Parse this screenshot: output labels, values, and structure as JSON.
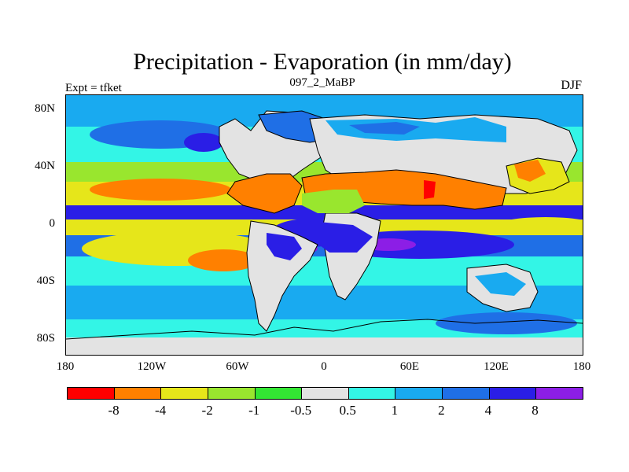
{
  "header": {
    "title": "Precipitation - Evaporation (in mm/day)",
    "subtitle_center": "097_2_MaBP",
    "subtitle_left": "Expt = tfket",
    "subtitle_right": "DJF"
  },
  "map": {
    "projection": "cylindrical equidistant",
    "lon_range": [
      -180,
      180
    ],
    "lat_range": [
      -90,
      90
    ],
    "y_axis_labels": [
      "80N",
      "40N",
      "0",
      "40S",
      "80S"
    ],
    "x_axis_labels": [
      "180",
      "120W",
      "60W",
      "0",
      "60E",
      "120E",
      "180"
    ],
    "land_fill": "#e3e3e3"
  },
  "colorbar": {
    "colors": [
      "#ff0000",
      "#ff8000",
      "#e6e61a",
      "#99e62e",
      "#33e633",
      "#e3e3e3",
      "#33f5e6",
      "#19aaf0",
      "#1f6fe6",
      "#2a1ee6",
      "#8c1ee6"
    ],
    "labels": [
      "-8",
      "-4",
      "-2",
      "-1",
      "-0.5",
      "0.5",
      "1",
      "2",
      "4",
      "8"
    ]
  }
}
